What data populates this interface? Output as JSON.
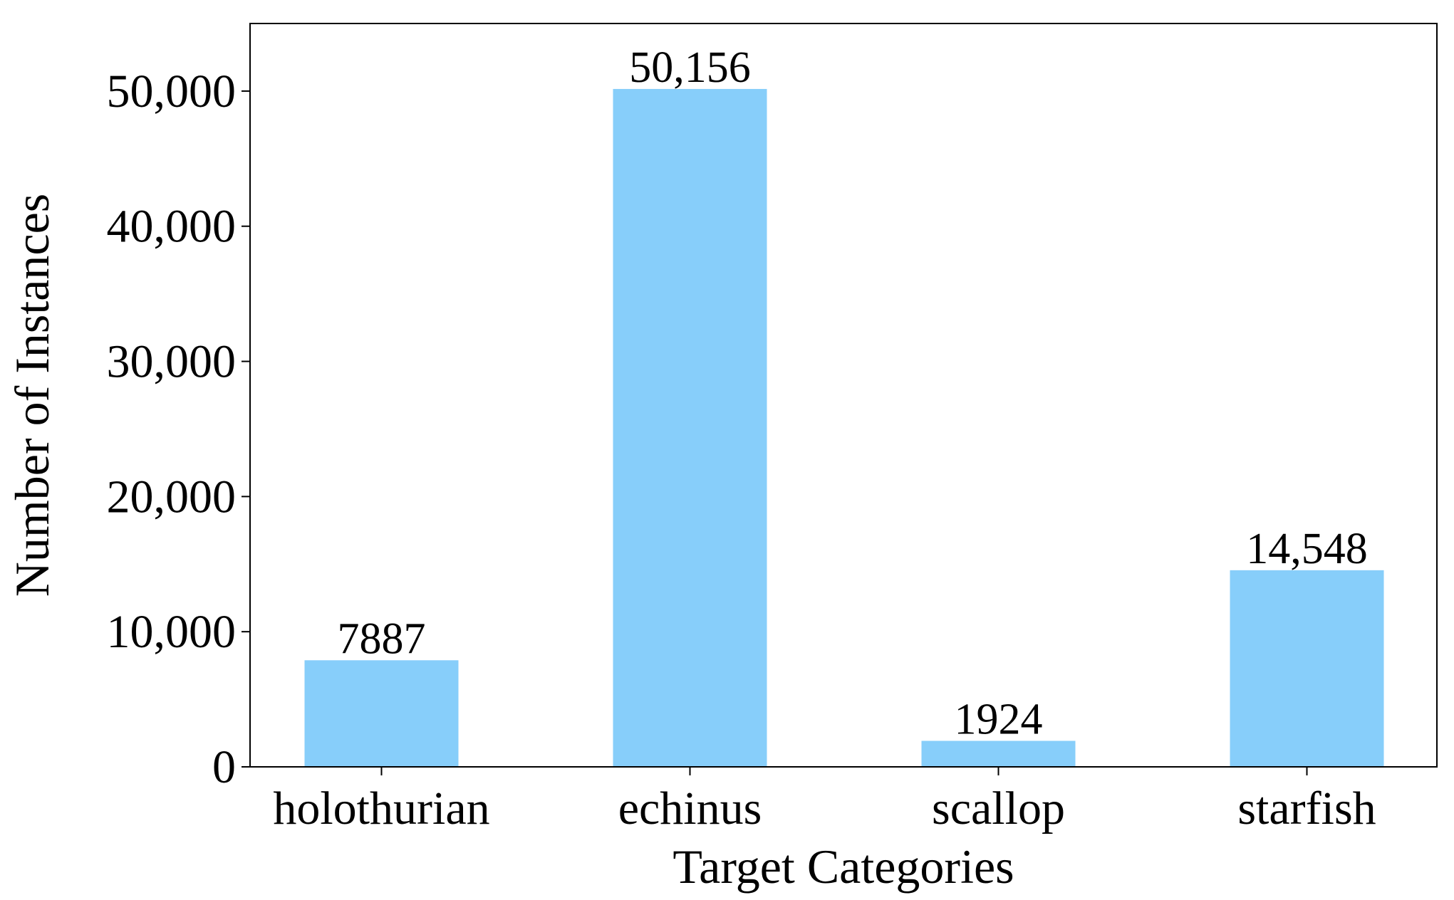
{
  "chart_data": {
    "type": "bar",
    "xlabel": "Target Categories",
    "ylabel": "Number of Instances",
    "categories": [
      "holothurian",
      "echinus",
      "scallop",
      "starfish"
    ],
    "values": [
      7887,
      50156,
      1924,
      14548
    ],
    "value_labels": [
      "7887",
      "50,156",
      "1924",
      "14,548"
    ],
    "color": "#87cefa",
    "ylim": [
      0,
      55000
    ],
    "yticks": [
      0,
      {
        "value": 10000,
        "label": "10,000"
      },
      {
        "value": 20000,
        "label": "20,000"
      },
      {
        "value": 30000,
        "label": "30,000"
      },
      {
        "value": 40000,
        "label": "40,000"
      },
      {
        "value": 50000,
        "label": "50,000"
      }
    ],
    "grid": false
  }
}
